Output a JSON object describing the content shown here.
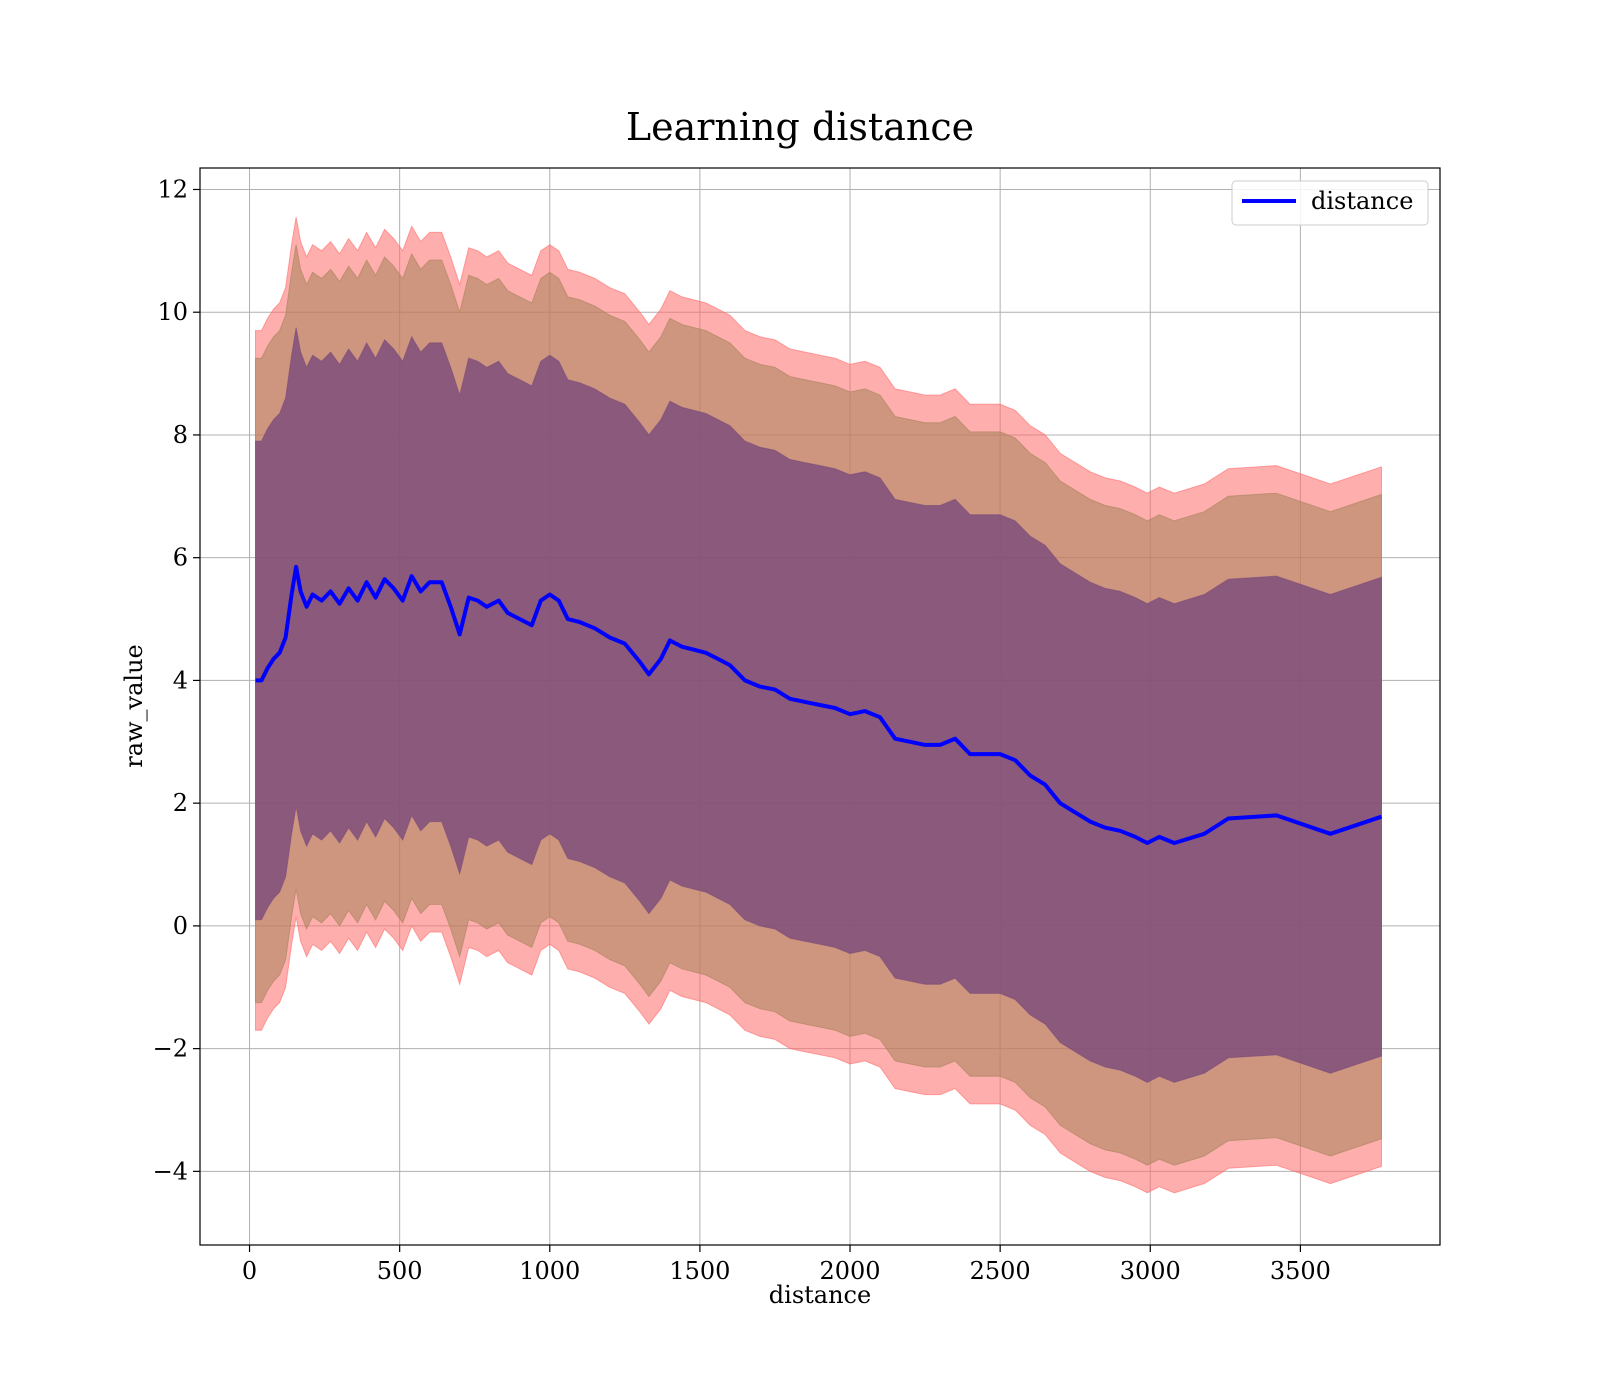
{
  "chart_data": {
    "type": "line",
    "title": "Learning distance",
    "xlabel": "distance",
    "ylabel": "raw_value",
    "xlim": [
      -165,
      3965
    ],
    "ylim": [
      -5.2,
      12.35
    ],
    "xticks": [
      0,
      500,
      1000,
      1500,
      2000,
      2500,
      3000,
      3500
    ],
    "xtick_labels": [
      "0",
      "500",
      "1000",
      "1500",
      "2000",
      "2500",
      "3000",
      "3500"
    ],
    "yticks": [
      -4,
      -2,
      0,
      2,
      4,
      6,
      8,
      10,
      12
    ],
    "ytick_labels": [
      "−4",
      "−2",
      "0",
      "2",
      "4",
      "6",
      "8",
      "10",
      "12"
    ],
    "grid": true,
    "legend": {
      "position": "top-right",
      "entries": [
        "distance"
      ]
    },
    "colors": {
      "line": "#0000ff",
      "outer_band": "#ff6b6b",
      "middle_band": "#a6845a",
      "inner_band": "#7a4a7a"
    },
    "series": [
      {
        "name": "distance",
        "x": [
          20,
          40,
          60,
          80,
          100,
          120,
          140,
          155,
          170,
          190,
          210,
          240,
          270,
          300,
          330,
          360,
          390,
          420,
          450,
          480,
          510,
          540,
          570,
          600,
          640,
          670,
          700,
          730,
          760,
          790,
          830,
          860,
          900,
          940,
          970,
          1000,
          1030,
          1060,
          1100,
          1150,
          1200,
          1250,
          1300,
          1330,
          1370,
          1400,
          1440,
          1480,
          1520,
          1560,
          1600,
          1650,
          1700,
          1750,
          1800,
          1850,
          1900,
          1950,
          2000,
          2050,
          2100,
          2150,
          2200,
          2250,
          2300,
          2350,
          2400,
          2450,
          2500,
          2550,
          2600,
          2650,
          2700,
          2750,
          2800,
          2850,
          2900,
          2950,
          2990,
          3030,
          3080,
          3180,
          3260,
          3420,
          3600,
          3770
        ],
        "values": [
          4.0,
          4.0,
          4.2,
          4.35,
          4.45,
          4.7,
          5.4,
          5.85,
          5.45,
          5.2,
          5.4,
          5.3,
          5.45,
          5.25,
          5.5,
          5.3,
          5.6,
          5.35,
          5.65,
          5.5,
          5.3,
          5.7,
          5.45,
          5.6,
          5.6,
          5.2,
          4.75,
          5.35,
          5.3,
          5.2,
          5.3,
          5.1,
          5.0,
          4.9,
          5.3,
          5.4,
          5.3,
          5.0,
          4.95,
          4.85,
          4.7,
          4.6,
          4.3,
          4.1,
          4.35,
          4.65,
          4.55,
          4.5,
          4.45,
          4.35,
          4.25,
          4.0,
          3.9,
          3.85,
          3.7,
          3.65,
          3.6,
          3.55,
          3.45,
          3.5,
          3.4,
          3.05,
          3.0,
          2.95,
          2.95,
          3.05,
          2.8,
          2.8,
          2.8,
          2.7,
          2.45,
          2.3,
          2.0,
          1.85,
          1.7,
          1.6,
          1.55,
          1.45,
          1.35,
          1.45,
          1.35,
          1.5,
          1.75,
          1.8,
          1.5,
          1.78
        ]
      }
    ],
    "bands": [
      {
        "name": "outer",
        "offset": 5.7
      },
      {
        "name": "middle",
        "offset": 5.25
      },
      {
        "name": "inner",
        "offset": 3.9
      }
    ]
  }
}
